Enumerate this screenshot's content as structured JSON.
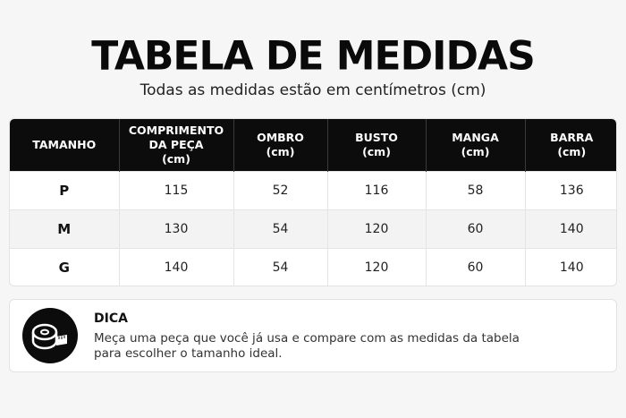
{
  "header": {
    "title": "TABELA DE MEDIDAS",
    "subtitle": "Todas as medidas estão em centímetros (cm)"
  },
  "table": {
    "columns": [
      {
        "line1": "TAMANHO",
        "line2": "",
        "line3": ""
      },
      {
        "line1": "COMPRIMENTO",
        "line2": "DA PEÇA",
        "line3": "(cm)"
      },
      {
        "line1": "OMBRO",
        "line2": "(cm)",
        "line3": ""
      },
      {
        "line1": "BUSTO",
        "line2": "(cm)",
        "line3": ""
      },
      {
        "line1": "MANGA",
        "line2": "(cm)",
        "line3": ""
      },
      {
        "line1": "BARRA",
        "line2": "(cm)",
        "line3": ""
      }
    ],
    "rows": [
      {
        "size": "P",
        "comprimento": "115",
        "ombro": "52",
        "busto": "116",
        "manga": "58",
        "barra": "136"
      },
      {
        "size": "M",
        "comprimento": "130",
        "ombro": "54",
        "busto": "120",
        "manga": "60",
        "barra": "140"
      },
      {
        "size": "G",
        "comprimento": "140",
        "ombro": "54",
        "busto": "120",
        "manga": "60",
        "barra": "140"
      }
    ]
  },
  "tip": {
    "icon": "measuring-tape-icon",
    "title": "DICA",
    "line1": "Meça uma peça que você já usa e compare com as medidas da tabela",
    "line2": "para escolher o tamanho ideal."
  },
  "colors": {
    "header_bg": "#0c0c0c",
    "page_bg": "#f6f6f6",
    "stripe_bg": "#f3f3f3"
  }
}
